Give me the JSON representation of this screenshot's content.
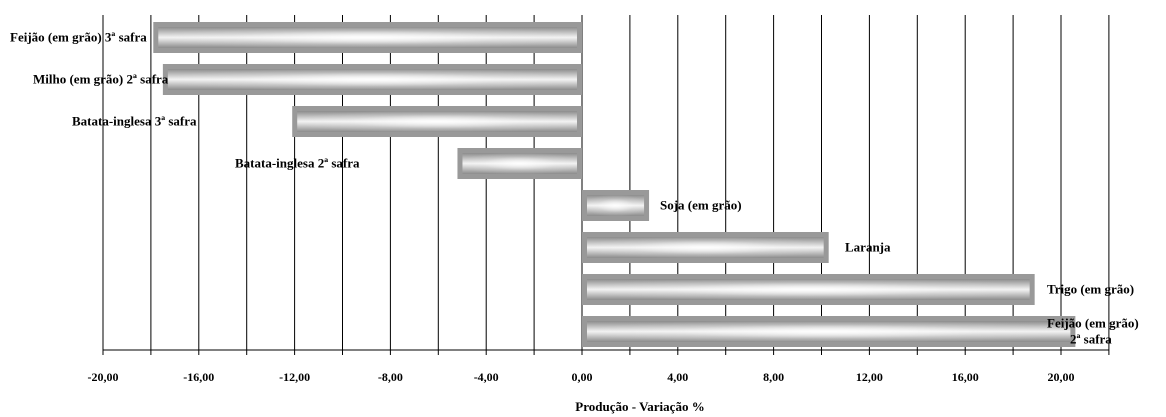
{
  "chart_data": {
    "type": "bar",
    "orientation": "horizontal",
    "xlabel": "Produção - Variação %",
    "xlim": [
      -20,
      22
    ],
    "grid": true,
    "x_ticks": [
      "-20,00",
      "-16,00",
      "-12,00",
      "-8,00",
      "-4,00",
      "0,00",
      "4,00",
      "8,00",
      "12,00",
      "16,00",
      "20,00"
    ],
    "categories": [
      "Feijão (em grão) 3ª safra",
      "Milho (em grão) 2ª safra",
      "Batata-inglesa 3ª safra",
      "Batata-inglesa 2ª safra",
      "Soja (em grão)",
      "Laranja",
      "Trigo (em grão)",
      "Feijão (em grão) 2ª safra"
    ],
    "values": [
      -17.9,
      -17.5,
      -12.1,
      -5.2,
      2.8,
      10.3,
      18.9,
      20.6
    ],
    "label_lines": [
      [
        "Feijão (em grão) 3ª safra"
      ],
      [
        "Milho (em grão) 2ª safra"
      ],
      [
        "Batata-inglesa 3ª safra"
      ],
      [
        "Batata-inglesa 2ª safra"
      ],
      [
        "Soja (em grão)"
      ],
      [
        "Laranja"
      ],
      [
        "Trigo (em grão)"
      ],
      [
        "Feijão (em grão)",
        "2ª safra"
      ]
    ]
  }
}
